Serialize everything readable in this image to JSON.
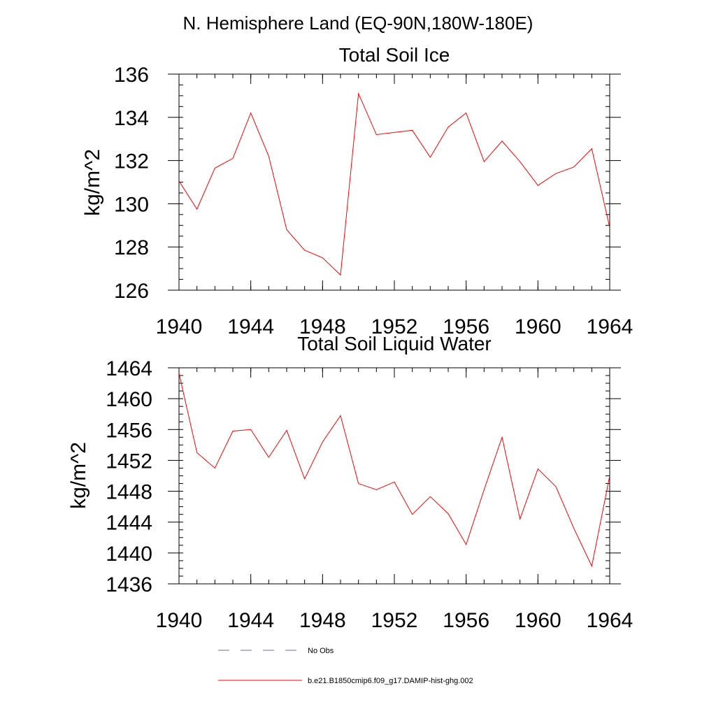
{
  "figure": {
    "title": "N. Hemisphere Land (EQ-90N,180W-180E)"
  },
  "chart_data": [
    {
      "type": "line",
      "title": "Total Soil Ice",
      "xlabel": "",
      "ylabel": "kg/m^2",
      "xlim": [
        1940,
        1964
      ],
      "ylim": [
        126,
        136
      ],
      "xticks": [
        "1940",
        "1944",
        "1948",
        "1952",
        "1956",
        "1960",
        "1964"
      ],
      "yticks": [
        "126",
        "128",
        "130",
        "132",
        "134",
        "136"
      ],
      "x": [
        1940,
        1941,
        1942,
        1943,
        1944,
        1945,
        1946,
        1947,
        1948,
        1949,
        1950,
        1951,
        1952,
        1953,
        1954,
        1955,
        1956,
        1957,
        1958,
        1959,
        1960,
        1961,
        1962,
        1963,
        1964
      ],
      "series": [
        {
          "name": "b.e21.B1850cmip6.f09_g17.DAMIP-hist-ghg.002",
          "color": "#ff0000",
          "values": [
            131.05,
            129.75,
            131.65,
            132.1,
            134.2,
            132.2,
            128.8,
            127.85,
            127.5,
            126.7,
            135.1,
            133.2,
            133.3,
            133.4,
            132.15,
            133.55,
            134.2,
            131.95,
            132.9,
            131.95,
            130.85,
            131.4,
            131.7,
            132.55,
            128.9
          ]
        }
      ]
    },
    {
      "type": "line",
      "title": "Total Soil Liquid Water",
      "xlabel": "",
      "ylabel": "kg/m^2",
      "xlim": [
        1940,
        1964
      ],
      "ylim": [
        1436,
        1464
      ],
      "xticks": [
        "1940",
        "1944",
        "1948",
        "1952",
        "1956",
        "1960",
        "1964"
      ],
      "yticks": [
        "1436",
        "1440",
        "1444",
        "1448",
        "1452",
        "1456",
        "1460",
        "1464"
      ],
      "x": [
        1940,
        1941,
        1942,
        1943,
        1944,
        1945,
        1946,
        1947,
        1948,
        1949,
        1950,
        1951,
        1952,
        1953,
        1954,
        1955,
        1956,
        1957,
        1958,
        1959,
        1960,
        1961,
        1962,
        1963,
        1964
      ],
      "series": [
        {
          "name": "b.e21.B1850cmip6.f09_g17.DAMIP-hist-ghg.002",
          "color": "#ff0000",
          "values": [
            1463.3,
            1453.0,
            1451.0,
            1455.8,
            1456.0,
            1452.4,
            1455.9,
            1449.6,
            1454.4,
            1457.8,
            1449.0,
            1448.2,
            1449.2,
            1445.0,
            1447.3,
            1445.1,
            1441.1,
            1448.2,
            1455.0,
            1444.4,
            1450.9,
            1448.6,
            1443.2,
            1438.3,
            1450.0
          ]
        }
      ]
    }
  ],
  "legend": [
    {
      "label": "No Obs",
      "style": "dashed",
      "color": "#6a6ab8"
    },
    {
      "label": "b.e21.B1850cmip6.f09_g17.DAMIP-hist-ghg.002",
      "style": "solid",
      "color": "#ff0000"
    }
  ]
}
